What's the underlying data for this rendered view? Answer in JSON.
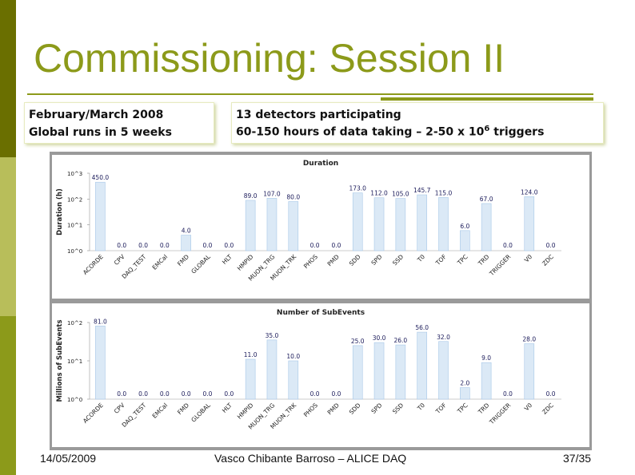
{
  "slide": {
    "title": "Commissioning: Session II",
    "info_left": [
      "February/March 2008",
      "Global runs in 5 weeks"
    ],
    "info_right_line1": "13 detectors participating",
    "info_right_line2_pre": "60-150 hours of data taking – 2-50 x 10",
    "info_right_line2_sup": "6",
    "info_right_line2_post": " triggers"
  },
  "footer": {
    "date": "14/05/2009",
    "author": "Vasco Chibante Barroso – ALICE DAQ",
    "page": "37/35"
  },
  "colors": {
    "accent": "#8c9a1a",
    "sidebar_dark": "#6a6f00",
    "sidebar_light": "#b8be5a",
    "bar_fill": "#dbe9f6",
    "bar_stroke": "#a8c8e8",
    "label_text": "#1a1a5a"
  },
  "chart_data": [
    {
      "type": "bar",
      "title": "Duration",
      "ylabel": "Duration (h)",
      "xlabel": "",
      "yscale": "log",
      "ylim": [
        1,
        1000
      ],
      "ytick_labels": [
        "10^3",
        "10^2",
        "10^1",
        "10^0"
      ],
      "categories": [
        "ACORDE",
        "CPV",
        "DAQ_TEST",
        "EMCal",
        "FMD",
        "GLOBAL",
        "HLT",
        "HMPID",
        "MUON_TRG",
        "MUON_TRK",
        "PHOS",
        "PMD",
        "SDD",
        "SPD",
        "SSD",
        "T0",
        "TOF",
        "TPC",
        "TRD",
        "TRIGGER",
        "V0",
        "ZDC"
      ],
      "values": [
        450.0,
        0.0,
        0.0,
        0.0,
        4.0,
        0.0,
        0.0,
        89.0,
        107.0,
        80.0,
        0.0,
        0.0,
        173.0,
        112.0,
        105.0,
        145.7,
        115.0,
        6.0,
        67.0,
        0.0,
        124.0,
        0.0
      ],
      "value_labels": [
        "450.0",
        "0.0",
        "0.0",
        "0.0",
        "4.0",
        "0.0",
        "0.0",
        "89.0",
        "107.0",
        "80.0",
        "0.0",
        "0.0",
        "173.0",
        "112.0",
        "105.0",
        "145.7",
        "115.0",
        "6.0",
        "67.0",
        "0.0",
        "124.0",
        "0.0"
      ]
    },
    {
      "type": "bar",
      "title": "Number of SubEvents",
      "ylabel": "Millions of SubEvents",
      "xlabel": "",
      "yscale": "log",
      "ylim": [
        1,
        100
      ],
      "ytick_labels": [
        "10^2",
        "10^1",
        "10^0"
      ],
      "categories": [
        "ACORDE",
        "CPV",
        "DAQ_TEST",
        "EMCal",
        "FMD",
        "GLOBAL",
        "HLT",
        "HMPID",
        "MUON_TRG",
        "MUON_TRK",
        "PHOS",
        "PMD",
        "SDD",
        "SPD",
        "SSD",
        "T0",
        "TOF",
        "TPC",
        "TRD",
        "TRIGGER",
        "V0",
        "ZDC"
      ],
      "values": [
        81.0,
        0.0,
        0.0,
        0.0,
        0.0,
        0.0,
        0.0,
        11.0,
        35.0,
        10.0,
        0.0,
        0.0,
        25.0,
        30.0,
        26.0,
        56.0,
        32.0,
        2.0,
        9.0,
        0.0,
        28.0,
        0.0
      ],
      "value_labels": [
        "81.0",
        "0.0",
        "0.0",
        "0.0",
        "0.0",
        "0.0",
        "0.0",
        "11.0",
        "35.0",
        "10.0",
        "0.0",
        "0.0",
        "25.0",
        "30.0",
        "26.0",
        "56.0",
        "32.0",
        "2.0",
        "9.0",
        "0.0",
        "28.0",
        "0.0"
      ]
    }
  ]
}
